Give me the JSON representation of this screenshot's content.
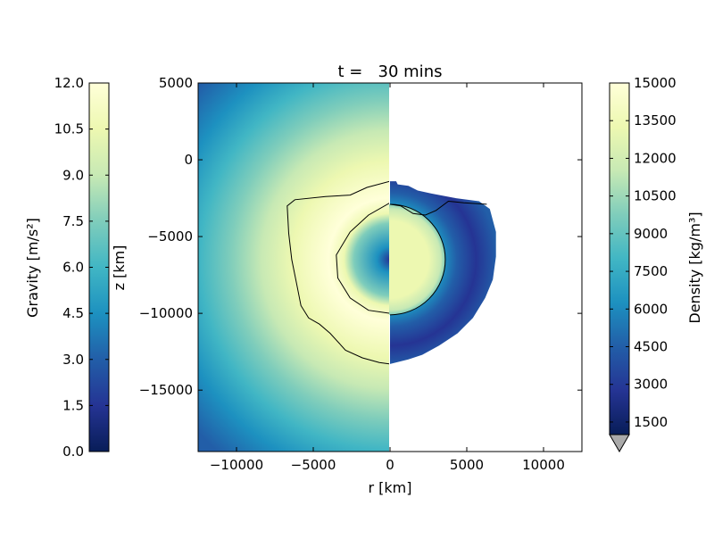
{
  "chart_data": {
    "type": "heatmap",
    "title": "t =   30 mins",
    "xlabel": "r [km]",
    "ylabel": "z [km]",
    "xlim": [
      -12500,
      12500
    ],
    "ylim": [
      -19000,
      5000
    ],
    "xticks": [
      -10000,
      -5000,
      0,
      5000,
      10000
    ],
    "yticks": [
      5000,
      0,
      -5000,
      -10000,
      -15000
    ],
    "left_half": {
      "quantity": "Gravity",
      "center": [
        0,
        -6500
      ],
      "peak_radius": 4000,
      "boundary_contour": [
        [
          0,
          -1400
        ],
        [
          -1500,
          -1800
        ],
        [
          -2600,
          -2300
        ],
        [
          -4200,
          -2400
        ],
        [
          -6200,
          -2600
        ],
        [
          -6700,
          -3000
        ],
        [
          -6600,
          -4800
        ],
        [
          -6400,
          -6500
        ],
        [
          -6100,
          -8000
        ],
        [
          -5800,
          -9500
        ],
        [
          -5300,
          -10300
        ],
        [
          -4600,
          -10700
        ],
        [
          -3900,
          -11300
        ],
        [
          -2900,
          -12400
        ],
        [
          -1800,
          -12900
        ],
        [
          -700,
          -13200
        ],
        [
          0,
          -13300
        ]
      ],
      "inner_contour": [
        [
          0,
          -2800
        ],
        [
          -1400,
          -3600
        ],
        [
          -2600,
          -4700
        ],
        [
          -3500,
          -6200
        ],
        [
          -3400,
          -7700
        ],
        [
          -2600,
          -9000
        ],
        [
          -1400,
          -9800
        ],
        [
          0,
          -10000
        ]
      ]
    },
    "right_half": {
      "quantity": "Density",
      "core_radius": 3600,
      "core_center": [
        0,
        -6500
      ],
      "mantle_outline": [
        [
          0,
          -1400
        ],
        [
          400,
          -1400
        ],
        [
          500,
          -1600
        ],
        [
          1200,
          -1700
        ],
        [
          1800,
          -2000
        ],
        [
          2700,
          -2200
        ],
        [
          4300,
          -2500
        ],
        [
          5800,
          -2700
        ],
        [
          6500,
          -3200
        ],
        [
          6900,
          -4700
        ],
        [
          6900,
          -6300
        ],
        [
          6700,
          -7800
        ],
        [
          6200,
          -9000
        ],
        [
          5400,
          -10300
        ],
        [
          4400,
          -11300
        ],
        [
          3200,
          -12100
        ],
        [
          2100,
          -12700
        ],
        [
          1200,
          -13000
        ],
        [
          0,
          -13300
        ]
      ]
    },
    "colorbars": [
      {
        "label": "Gravity [m/s²]",
        "range": [
          0.0,
          12.0
        ],
        "ticks": [
          "12.0",
          "10.5",
          "9.0",
          "7.5",
          "6.0",
          "4.5",
          "3.0",
          "1.5",
          "0.0"
        ],
        "colormap": "YlGnBu_r"
      },
      {
        "label": "Density [kg/m³]",
        "range": [
          1000,
          15000
        ],
        "ticks": [
          "15000",
          "13500",
          "12000",
          "10500",
          "9000",
          "7500",
          "6000",
          "4500",
          "3000",
          "1500"
        ],
        "colormap": "YlGnBu_r",
        "extend": "min"
      }
    ]
  },
  "colors": {
    "cmap_stops": [
      "#081d58",
      "#253494",
      "#225ea8",
      "#1d91c0",
      "#41b6c4",
      "#7fcdbb",
      "#c7e9b4",
      "#edf8b1",
      "#ffffd9"
    ],
    "under": "#aaaaaa"
  }
}
